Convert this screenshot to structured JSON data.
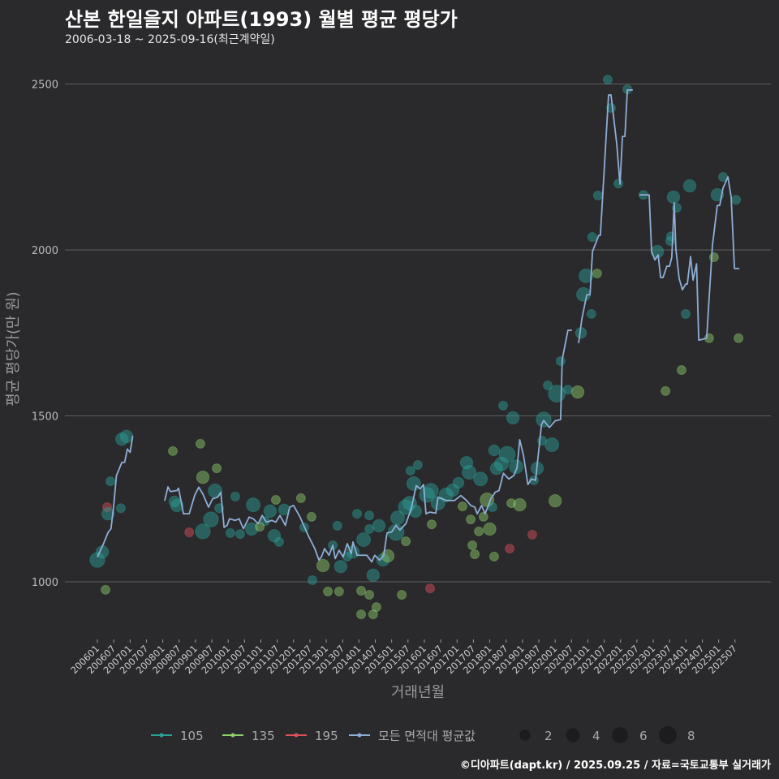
{
  "header": {
    "title": "산본 한일을지 아파트(1993) 월별 평균 평당가",
    "subtitle": "2006-03-18 ~ 2025-09-16(최근계약일)"
  },
  "caption": "©디아파트(dapt.kr) / 2025.09.25 / 자료=국토교통부 실거래가",
  "colors": {
    "background": "#2a2a2c",
    "grid": "#5e5e5e",
    "g105": "#2aa198",
    "g135": "#8fd16a",
    "g195": "#e0505a",
    "avg": "#8eaed6"
  },
  "chart_data": {
    "type": "scatter+line",
    "title": "산본 한일을지 아파트(1993) 월별 평균 평당가",
    "xlabel": "거래년월",
    "ylabel": "평균 평당가(만 원)",
    "x_unit": "months since 2006-01",
    "x_ticks": [
      "200601",
      "200607",
      "200701",
      "200707",
      "200801",
      "200807",
      "200901",
      "200907",
      "201001",
      "201007",
      "201101",
      "201107",
      "201201",
      "201207",
      "201301",
      "201307",
      "201401",
      "201407",
      "201501",
      "201507",
      "201601",
      "201607",
      "201701",
      "201707",
      "201801",
      "201807",
      "201901",
      "201907",
      "202001",
      "202007",
      "202101",
      "202107",
      "202201",
      "202207",
      "202301",
      "202307",
      "202401",
      "202407",
      "202501",
      "202507"
    ],
    "y_ticks": [
      1000,
      1500,
      2000,
      2500
    ],
    "ylim": [
      830,
      2570
    ],
    "xlim": [
      -8,
      240
    ],
    "grid": true,
    "legend": {
      "position": "bottom",
      "series": [
        {
          "label": "105",
          "key": "g105"
        },
        {
          "label": "135",
          "key": "g135"
        },
        {
          "label": "195",
          "key": "g195"
        },
        {
          "label": "모든 면적대 평균값",
          "key": "avg"
        }
      ],
      "sizes": [
        2,
        4,
        6,
        8
      ]
    },
    "avg_line": [
      [
        [
          0,
          1075
        ],
        [
          2,
          1110
        ],
        [
          4,
          1150
        ],
        [
          5,
          1160
        ],
        [
          6,
          1230
        ],
        [
          7,
          1320
        ],
        [
          9,
          1360
        ],
        [
          10,
          1360
        ],
        [
          11,
          1400
        ],
        [
          12,
          1390
        ],
        [
          13,
          1440
        ]
      ],
      [
        [
          24.7,
          1244
        ],
        [
          25.9,
          1286
        ],
        [
          26.8,
          1272
        ],
        [
          29.2,
          1275
        ],
        [
          29.8,
          1282
        ],
        [
          31.6,
          1205
        ],
        [
          33.7,
          1205
        ],
        [
          35.7,
          1260
        ],
        [
          37.2,
          1285
        ],
        [
          38.7,
          1265
        ],
        [
          40.8,
          1225
        ],
        [
          42.3,
          1250
        ],
        [
          44.1,
          1255
        ],
        [
          45.3,
          1270
        ],
        [
          46.5,
          1164
        ],
        [
          47.6,
          1170
        ],
        [
          48.5,
          1190
        ],
        [
          50.6,
          1185
        ],
        [
          52,
          1190
        ],
        [
          53.6,
          1160
        ],
        [
          55.7,
          1195
        ],
        [
          57.2,
          1190
        ],
        [
          59,
          1175
        ],
        [
          60.5,
          1200
        ],
        [
          62,
          1180
        ],
        [
          64,
          1185
        ],
        [
          65.5,
          1180
        ],
        [
          67,
          1200
        ],
        [
          69,
          1170
        ],
        [
          70.6,
          1225
        ],
        [
          72,
          1230
        ],
        [
          74.4,
          1195
        ],
        [
          77.4,
          1139
        ],
        [
          79.8,
          1100
        ],
        [
          81.3,
          1066
        ],
        [
          82.2,
          1075
        ],
        [
          83.4,
          1100
        ],
        [
          85,
          1080
        ],
        [
          86.4,
          1110
        ],
        [
          87.3,
          1070
        ],
        [
          88.7,
          1095
        ],
        [
          90.2,
          1075
        ],
        [
          91.7,
          1115
        ],
        [
          93.2,
          1085
        ],
        [
          93.8,
          1120
        ],
        [
          95.3,
          1080
        ],
        [
          96.8,
          1080
        ],
        [
          98.9,
          1080
        ],
        [
          100.7,
          1060
        ],
        [
          101.8,
          1080
        ],
        [
          103.6,
          1065
        ],
        [
          105.1,
          1080
        ],
        [
          106.3,
          1147
        ],
        [
          108,
          1150
        ],
        [
          109.6,
          1170
        ],
        [
          111,
          1156
        ],
        [
          113.2,
          1175
        ],
        [
          115.2,
          1220
        ],
        [
          117,
          1290
        ],
        [
          118.5,
          1280
        ],
        [
          119.7,
          1293
        ],
        [
          120.6,
          1205
        ],
        [
          122,
          1210
        ],
        [
          124.2,
          1207
        ],
        [
          125,
          1254
        ],
        [
          126.6,
          1250
        ],
        [
          128,
          1245
        ],
        [
          131,
          1245
        ],
        [
          133.4,
          1260
        ],
        [
          135.5,
          1245
        ],
        [
          137,
          1230
        ],
        [
          138.5,
          1225
        ],
        [
          139.4,
          1205
        ],
        [
          141,
          1230
        ],
        [
          142.3,
          1205
        ],
        [
          143,
          1220
        ],
        [
          144.4,
          1250
        ],
        [
          146,
          1270
        ],
        [
          147.4,
          1275
        ],
        [
          149,
          1327
        ],
        [
          151,
          1310
        ],
        [
          152.8,
          1320
        ],
        [
          154,
          1343
        ],
        [
          155,
          1428
        ],
        [
          156.4,
          1380
        ],
        [
          158,
          1293
        ],
        [
          159.3,
          1310
        ],
        [
          160.8,
          1306
        ],
        [
          163,
          1474
        ],
        [
          163.8,
          1486
        ],
        [
          165.9,
          1465
        ],
        [
          168,
          1485
        ],
        [
          170,
          1489
        ],
        [
          170.6,
          1670
        ],
        [
          172.7,
          1758
        ],
        [
          174.2,
          1758
        ]
      ],
      [
        [
          176.6,
          1719
        ],
        [
          177.8,
          1792
        ],
        [
          179.6,
          1865
        ],
        [
          180.8,
          1865
        ],
        [
          181.7,
          1995
        ],
        [
          184,
          2044
        ],
        [
          184.6,
          2044
        ],
        [
          187.6,
          2467
        ],
        [
          188.5,
          2467
        ],
        [
          190.6,
          2320
        ],
        [
          191.8,
          2198
        ],
        [
          192.7,
          2342
        ],
        [
          193.6,
          2342
        ],
        [
          194.5,
          2482
        ],
        [
          196.5,
          2482
        ]
      ],
      [
        [
          198.9,
          2166
        ],
        [
          202.5,
          2166
        ],
        [
          203.4,
          1995
        ],
        [
          204.6,
          1970
        ],
        [
          205.8,
          1985
        ],
        [
          206.7,
          1917
        ],
        [
          207.6,
          1917
        ],
        [
          209,
          1951
        ],
        [
          210,
          1951
        ],
        [
          210.8,
          1978
        ],
        [
          211.7,
          2142
        ],
        [
          212.3,
          2003
        ],
        [
          213.5,
          1914
        ],
        [
          214.7,
          1880
        ],
        [
          215.9,
          1897
        ],
        [
          216.5,
          1897
        ],
        [
          217.7,
          1980
        ],
        [
          218.6,
          1909
        ],
        [
          219.9,
          1958
        ],
        [
          220.7,
          1728
        ],
        [
          223.6,
          1734
        ],
        [
          225.7,
          2012
        ],
        [
          227.5,
          2134
        ],
        [
          228.4,
          2134
        ],
        [
          229.6,
          2186
        ],
        [
          231.4,
          2220
        ],
        [
          232.6,
          2159
        ],
        [
          233.8,
          1944
        ],
        [
          235.6,
          1944
        ]
      ]
    ],
    "points_fields": [
      "month",
      "value",
      "count",
      "area"
    ],
    "points": [
      [
        0,
        1066,
        5,
        "105"
      ],
      [
        1.8,
        1090,
        3,
        "105"
      ],
      [
        3,
        976,
        1,
        "135"
      ],
      [
        3.6,
        1225,
        1,
        "195"
      ],
      [
        3.9,
        1205,
        3,
        "105"
      ],
      [
        4.8,
        1303,
        1,
        "105"
      ],
      [
        8.6,
        1222,
        1,
        "105"
      ],
      [
        9,
        1430,
        3,
        "105"
      ],
      [
        10.7,
        1438,
        3,
        "105"
      ],
      [
        27.7,
        1394,
        1,
        "135"
      ],
      [
        33.7,
        1149,
        1,
        "195"
      ],
      [
        28.3,
        1242,
        2,
        "105"
      ],
      [
        29.2,
        1230,
        3,
        "105"
      ],
      [
        37.8,
        1416,
        1,
        "135"
      ],
      [
        38.7,
        1315,
        3,
        "135"
      ],
      [
        38.7,
        1152,
        5,
        "105"
      ],
      [
        41.7,
        1188,
        5,
        "105"
      ],
      [
        43.2,
        1274,
        4,
        "105"
      ],
      [
        43.8,
        1342,
        1,
        "135"
      ],
      [
        44.7,
        1222,
        1,
        "105"
      ],
      [
        48.8,
        1147,
        1,
        "105"
      ],
      [
        50.6,
        1257,
        1,
        "105"
      ],
      [
        52.4,
        1144,
        1,
        "105"
      ],
      [
        57.2,
        1232,
        4,
        "105"
      ],
      [
        56.6,
        1159,
        3,
        "105"
      ],
      [
        61.6,
        1183,
        1,
        "105"
      ],
      [
        59.6,
        1166,
        1,
        "135"
      ],
      [
        63.4,
        1213,
        3,
        "105"
      ],
      [
        65.5,
        1247,
        1,
        "135"
      ],
      [
        64.9,
        1139,
        3,
        "105"
      ],
      [
        66.7,
        1120,
        1,
        "105"
      ],
      [
        68.5,
        1218,
        2,
        "105"
      ],
      [
        74.7,
        1252,
        1,
        "135"
      ],
      [
        75.9,
        1164,
        1,
        "105"
      ],
      [
        78.6,
        1196,
        1,
        "135"
      ],
      [
        78.9,
        1005,
        1,
        "105"
      ],
      [
        82.8,
        1049,
        3,
        "135"
      ],
      [
        84.6,
        971,
        1,
        "135"
      ],
      [
        86.4,
        1110,
        1,
        "105"
      ],
      [
        88.1,
        1169,
        1,
        "105"
      ],
      [
        88.7,
        971,
        1,
        "135"
      ],
      [
        89.3,
        1046,
        3,
        "105"
      ],
      [
        91.7,
        1076,
        1,
        "105"
      ],
      [
        93.8,
        1090,
        3,
        "105"
      ],
      [
        95.3,
        1205,
        1,
        "105"
      ],
      [
        96.8,
        902,
        1,
        "135"
      ],
      [
        96.8,
        973,
        1,
        "135"
      ],
      [
        97.7,
        1127,
        4,
        "105"
      ],
      [
        99.8,
        1159,
        1,
        "105"
      ],
      [
        99.8,
        1200,
        1,
        "105"
      ],
      [
        99.8,
        961,
        1,
        "135"
      ],
      [
        101.2,
        1020,
        3,
        "105"
      ],
      [
        101.2,
        902,
        1,
        "135"
      ],
      [
        102.4,
        924,
        1,
        "135"
      ],
      [
        103.3,
        1169,
        3,
        "105"
      ],
      [
        104.8,
        1066,
        3,
        "105"
      ],
      [
        106.6,
        1078,
        3,
        "135"
      ],
      [
        109.6,
        1149,
        6,
        "105"
      ],
      [
        110.2,
        1193,
        4,
        "105"
      ],
      [
        111.7,
        961,
        1,
        "135"
      ],
      [
        113.2,
        1122,
        1,
        "135"
      ],
      [
        113.2,
        1225,
        5,
        "105"
      ],
      [
        114.6,
        1237,
        4,
        "105"
      ],
      [
        114.9,
        1335,
        1,
        "105"
      ],
      [
        116.1,
        1296,
        4,
        "105"
      ],
      [
        117.6,
        1352,
        1,
        "105"
      ],
      [
        116.7,
        1213,
        3,
        "105"
      ],
      [
        122.1,
        980,
        1,
        "195"
      ],
      [
        122.7,
        1173,
        1,
        "135"
      ],
      [
        120.9,
        1262,
        5,
        "105"
      ],
      [
        122.4,
        1274,
        5,
        "105"
      ],
      [
        125,
        1237,
        4,
        "105"
      ],
      [
        128,
        1262,
        4,
        "105"
      ],
      [
        130.4,
        1276,
        3,
        "105"
      ],
      [
        132.5,
        1298,
        2,
        "105"
      ],
      [
        134,
        1227,
        1,
        "135"
      ],
      [
        135.5,
        1359,
        3,
        "105"
      ],
      [
        136.4,
        1330,
        4,
        "105"
      ],
      [
        137,
        1188,
        1,
        "135"
      ],
      [
        137.6,
        1110,
        1,
        "135"
      ],
      [
        138.5,
        1083,
        1,
        "135"
      ],
      [
        140,
        1152,
        1,
        "135"
      ],
      [
        140.6,
        1310,
        4,
        "105"
      ],
      [
        141.7,
        1196,
        1,
        "135"
      ],
      [
        143,
        1247,
        4,
        "135"
      ],
      [
        144,
        1159,
        3,
        "135"
      ],
      [
        145,
        1225,
        1,
        "105"
      ],
      [
        145.6,
        1396,
        2,
        "105"
      ],
      [
        146.5,
        1342,
        3,
        "105"
      ],
      [
        145.6,
        1076,
        1,
        "135"
      ],
      [
        148.3,
        1355,
        4,
        "105"
      ],
      [
        148.9,
        1531,
        1,
        "105"
      ],
      [
        150.4,
        1384,
        6,
        "105"
      ],
      [
        151.9,
        1237,
        1,
        "135"
      ],
      [
        151.3,
        1100,
        1,
        "195"
      ],
      [
        152.5,
        1494,
        3,
        "105"
      ],
      [
        153.7,
        1347,
        4,
        "105"
      ],
      [
        155,
        1232,
        3,
        "135"
      ],
      [
        159.6,
        1142,
        1,
        "195"
      ],
      [
        160.2,
        1306,
        1,
        "105"
      ],
      [
        161.4,
        1342,
        3,
        "105"
      ],
      [
        163.2,
        1425,
        1,
        "105"
      ],
      [
        163.8,
        1489,
        5,
        "105"
      ],
      [
        165.3,
        1592,
        1,
        "105"
      ],
      [
        166.8,
        1413,
        4,
        "105"
      ],
      [
        168,
        1244,
        3,
        "135"
      ],
      [
        168.6,
        1567,
        7,
        "105"
      ],
      [
        170,
        1665,
        1,
        "105"
      ],
      [
        172.7,
        1579,
        1,
        "105"
      ],
      [
        176.3,
        1572,
        3,
        "135"
      ],
      [
        177.5,
        1750,
        2,
        "105"
      ],
      [
        178.4,
        1866,
        4,
        "105"
      ],
      [
        179.3,
        1922,
        4,
        "105"
      ],
      [
        183.4,
        1929,
        1,
        "135"
      ],
      [
        181.3,
        1807,
        1,
        "105"
      ],
      [
        181.6,
        2039,
        1,
        "105"
      ],
      [
        183.7,
        2164,
        1,
        "105"
      ],
      [
        187.3,
        2513,
        1,
        "105"
      ],
      [
        188.5,
        2428,
        1,
        "105"
      ],
      [
        191.2,
        2200,
        1,
        "105"
      ],
      [
        194.5,
        2484,
        1,
        "105"
      ],
      [
        200.4,
        2166,
        1,
        "105"
      ],
      [
        205.5,
        1995,
        3,
        "105"
      ],
      [
        208.5,
        1575,
        1,
        "135"
      ],
      [
        210.2,
        2027,
        1,
        "105"
      ],
      [
        210.5,
        2041,
        1,
        "105"
      ],
      [
        211.4,
        2159,
        3,
        "105"
      ],
      [
        212.6,
        2127,
        1,
        "105"
      ],
      [
        214.4,
        1638,
        1,
        "135"
      ],
      [
        215.9,
        1807,
        1,
        "105"
      ],
      [
        217.4,
        2193,
        3,
        "105"
      ],
      [
        224.5,
        1734,
        1,
        "135"
      ],
      [
        226.3,
        1978,
        1,
        "135"
      ],
      [
        227.5,
        2166,
        3,
        "105"
      ],
      [
        229.6,
        2220,
        1,
        "105"
      ],
      [
        234.4,
        2151,
        1,
        "105"
      ],
      [
        235.3,
        1734,
        1,
        "135"
      ]
    ]
  }
}
